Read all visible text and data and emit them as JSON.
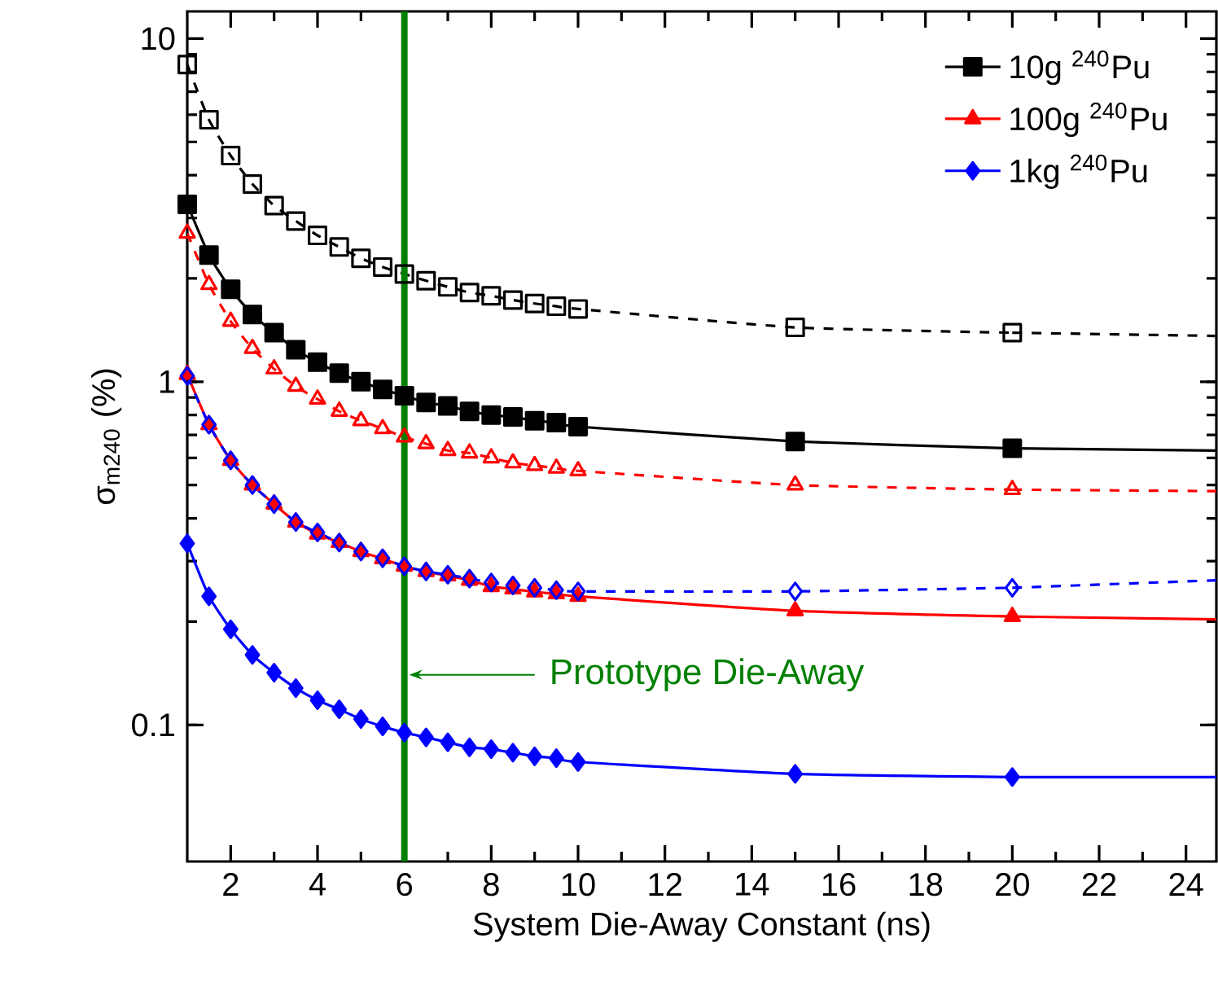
{
  "chart_data": {
    "type": "line",
    "xlabel": "System Die-Away Constant (ns)",
    "ylabel": "σ$_{m240}$ (%)",
    "xlim": [
      1,
      24.7
    ],
    "ylim": [
      0.04,
      12
    ],
    "log": "y",
    "xticks": [
      2,
      4,
      6,
      8,
      10,
      12,
      14,
      16,
      18,
      20,
      22,
      24
    ],
    "yticks": [
      0.1,
      1,
      10
    ],
    "legend": "top right",
    "grid": false,
    "series": [
      {
        "name": "10g $^{240}$Pu",
        "color": "#000000",
        "marker": "square",
        "line_style": "solid",
        "x": [
          1,
          1.5,
          2,
          2.5,
          3,
          3.5,
          4,
          4.5,
          5,
          5.5,
          6,
          6.5,
          7,
          7.5,
          8,
          8.5,
          9,
          9.5,
          10,
          15,
          20
        ],
        "values": [
          3.29,
          2.34,
          1.86,
          1.57,
          1.39,
          1.24,
          1.14,
          1.06,
          1.0,
          0.95,
          0.91,
          0.87,
          0.85,
          0.82,
          0.8,
          0.79,
          0.77,
          0.76,
          0.74,
          0.67,
          0.64
        ]
      },
      {
        "name": "100g $^{240}$Pu",
        "color": "#ff0000",
        "marker": "triangle",
        "line_style": "solid",
        "x": [
          1,
          1.5,
          2,
          2.5,
          3,
          3.5,
          4,
          4.5,
          5,
          5.5,
          6,
          6.5,
          7,
          7.5,
          8,
          8.5,
          9,
          9.5,
          10,
          15,
          20
        ],
        "values": [
          1.05,
          0.75,
          0.59,
          0.5,
          0.44,
          0.39,
          0.36,
          0.34,
          0.32,
          0.305,
          0.29,
          0.28,
          0.272,
          0.264,
          0.253,
          0.249,
          0.244,
          0.241,
          0.237,
          0.215,
          0.207
        ]
      },
      {
        "name": "1kg $^{240}$Pu",
        "color": "#0000ff",
        "marker": "diamond",
        "line_style": "solid",
        "x": [
          1,
          1.5,
          2,
          2.5,
          3,
          3.5,
          4,
          4.5,
          5,
          5.5,
          6,
          6.5,
          7,
          7.5,
          8,
          8.5,
          9,
          9.5,
          10,
          15,
          20
        ],
        "values": [
          0.338,
          0.237,
          0.19,
          0.16,
          0.142,
          0.128,
          0.118,
          0.111,
          0.104,
          0.099,
          0.095,
          0.092,
          0.089,
          0.086,
          0.085,
          0.083,
          0.081,
          0.08,
          0.078,
          0.072,
          0.0705
        ]
      },
      {
        "color": "#000000",
        "marker": "square",
        "line_style": "dashed",
        "x": [
          1,
          1.5,
          2,
          2.5,
          3,
          3.5,
          4,
          4.5,
          5,
          5.5,
          6,
          6.5,
          7,
          7.5,
          8,
          8.5,
          9,
          9.5,
          10,
          15,
          20
        ],
        "values": [
          8.4,
          5.8,
          4.56,
          3.77,
          3.26,
          2.94,
          2.67,
          2.47,
          2.29,
          2.16,
          2.06,
          1.97,
          1.89,
          1.82,
          1.78,
          1.73,
          1.69,
          1.66,
          1.63,
          1.44,
          1.39
        ]
      },
      {
        "color": "#ff0000",
        "marker": "triangle",
        "line_style": "dashed",
        "x": [
          1,
          1.5,
          2,
          2.5,
          3,
          3.5,
          4,
          4.5,
          5,
          5.5,
          6,
          6.5,
          7,
          7.5,
          8,
          8.5,
          9,
          9.5,
          10,
          15,
          20
        ],
        "values": [
          2.71,
          1.92,
          1.5,
          1.25,
          1.09,
          0.97,
          0.89,
          0.82,
          0.77,
          0.73,
          0.69,
          0.66,
          0.63,
          0.62,
          0.6,
          0.58,
          0.57,
          0.56,
          0.55,
          0.5,
          0.485
        ]
      },
      {
        "color": "#0000ff",
        "marker": "diamond",
        "line_style": "dashed",
        "x": [
          1,
          1.5,
          2,
          2.5,
          3,
          3.5,
          4,
          4.5,
          5,
          5.5,
          6,
          6.5,
          7,
          7.5,
          8,
          8.5,
          9,
          9.5,
          10,
          15,
          20
        ],
        "values": [
          1.04,
          0.75,
          0.59,
          0.5,
          0.44,
          0.39,
          0.364,
          0.34,
          0.32,
          0.306,
          0.29,
          0.28,
          0.274,
          0.267,
          0.26,
          0.255,
          0.251,
          0.247,
          0.245,
          0.245,
          0.251
        ]
      },
      {
        "color": "#000000",
        "marker": "none",
        "line_style": "solid",
        "x": [
          20,
          24.7
        ],
        "values": [
          0.64,
          0.63
        ]
      },
      {
        "color": "#ff0000",
        "marker": "none",
        "line_style": "solid",
        "x": [
          20,
          24.7
        ],
        "values": [
          0.207,
          0.203
        ]
      },
      {
        "color": "#0000ff",
        "marker": "none",
        "line_style": "solid",
        "x": [
          20,
          24.7
        ],
        "values": [
          0.0705,
          0.0705
        ]
      },
      {
        "color": "#000000",
        "marker": "none",
        "line_style": "dashed",
        "x": [
          20,
          24.7
        ],
        "values": [
          1.39,
          1.36
        ]
      },
      {
        "color": "#ff0000",
        "marker": "none",
        "line_style": "dashed",
        "x": [
          20,
          24.7
        ],
        "values": [
          0.485,
          0.48
        ]
      },
      {
        "color": "#0000ff",
        "marker": "none",
        "line_style": "dashed",
        "x": [
          20,
          24.7
        ],
        "values": [
          0.251,
          0.264
        ]
      }
    ],
    "ref_lines": [
      {
        "axis": "x",
        "value": 6,
        "label": "Prototype Die-Away",
        "color": "#008000"
      }
    ]
  }
}
